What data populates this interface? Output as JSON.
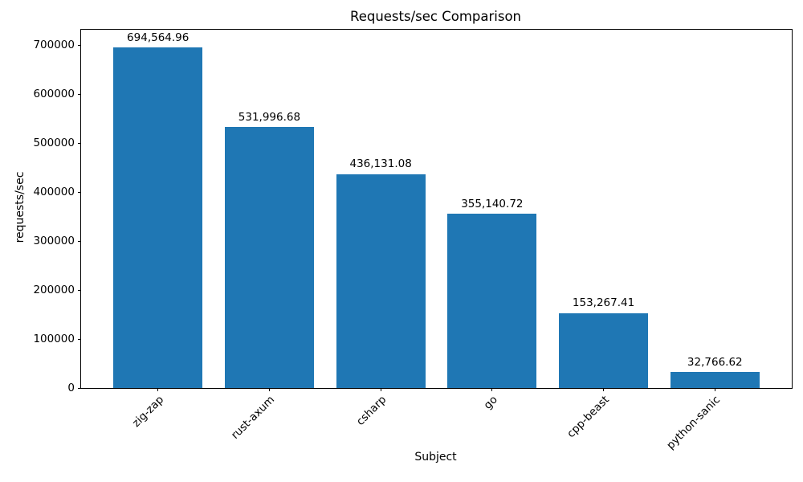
{
  "chart_data": {
    "type": "bar",
    "title": "Requests/sec Comparison",
    "xlabel": "Subject",
    "ylabel": "requests/sec",
    "categories": [
      "zig-zap",
      "rust-axum",
      "csharp",
      "go",
      "cpp-beast",
      "python-sanic"
    ],
    "values": [
      694564.96,
      531996.68,
      436131.08,
      355140.72,
      153267.41,
      32766.62
    ],
    "value_labels": [
      "694,564.96",
      "531,996.68",
      "436,131.08",
      "355,140.72",
      "153,267.41",
      "32,766.62"
    ],
    "yticks": [
      0,
      100000,
      200000,
      300000,
      400000,
      500000,
      600000,
      700000
    ],
    "ytick_labels": [
      "0",
      "100000",
      "200000",
      "300000",
      "400000",
      "500000",
      "600000",
      "700000"
    ],
    "ylim": [
      0,
      731149
    ],
    "bar_color": "#1f77b4",
    "axis_color": "#000000",
    "grid": false,
    "legend_position": "none",
    "x_tick_rotation_deg": 45,
    "bar_relative_width": 0.8
  }
}
